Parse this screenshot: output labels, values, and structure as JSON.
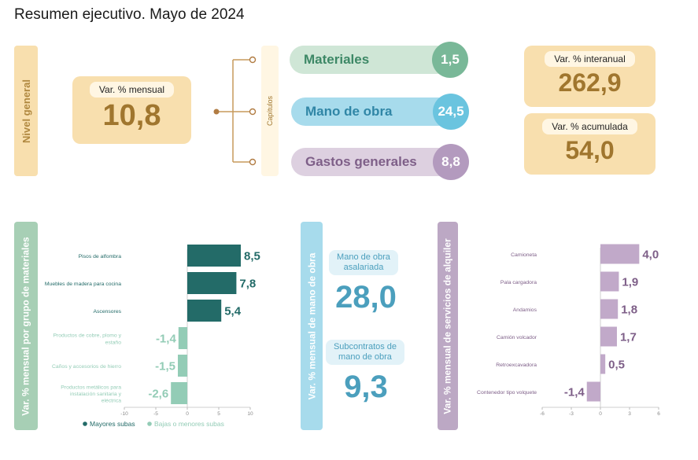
{
  "title": "Resumen ejecutivo. Mayo de 2024",
  "nivel_general": {
    "tab_label": "Nivel general",
    "mensual_label": "Var. % mensual",
    "mensual_value": "10,8",
    "capitulos_label": "Capítulos",
    "interanual_label": "Var. % interanual",
    "interanual_value": "262,9",
    "acumulada_label": "Var. % acumulada",
    "acumulada_value": "54,0",
    "capitulos": [
      {
        "label": "Materiales",
        "value": "1,5"
      },
      {
        "label": "Mano de obra",
        "value": "24,5"
      },
      {
        "label": "Gastos generales",
        "value": "8,8"
      }
    ]
  },
  "mano_obra": {
    "tab_label": "Var. % mensual de mano de obra",
    "asalariada_label": "Mano de obra asalariada",
    "asalariada_value": "28,0",
    "subcontratos_label": "Subcontratos de mano de obra",
    "subcontratos_value": "9,3"
  },
  "colors": {
    "tan": "#f8dfae",
    "tan_text": "#a0762e",
    "green_pill": "#cfe6d6",
    "green_circle": "#79b898",
    "blue_pill": "#a7dbec",
    "blue_circle": "#6ac4df",
    "purple_pill": "#ddd0e0",
    "purple_circle": "#b39abe",
    "teal_dark": "#236b68",
    "teal_light": "#93ccb6",
    "mauve": "#c1a9c9",
    "mauve_text": "#7e5f88",
    "blue_text": "#4b9fbd"
  },
  "chart_data": [
    {
      "type": "bar",
      "orientation": "horizontal",
      "title": "Var. % mensual por grupo de materiales",
      "categories": [
        "Pisos de alfombra",
        "Muebles de madera para cocina",
        "Ascensores",
        "Productos de cobre, plomo y estaño",
        "Caños y accesorios de hierro",
        "Productos metálicos para instalación sanitaria y eléctrica"
      ],
      "values": [
        8.5,
        7.8,
        5.4,
        -1.4,
        -1.5,
        -2.6
      ],
      "value_labels": [
        "8,5",
        "7,8",
        "5,4",
        "-1,4",
        "-1,5",
        "-2,6"
      ],
      "group": [
        "Mayores subas",
        "Mayores subas",
        "Mayores subas",
        "Bajas o menores subas",
        "Bajas o menores subas",
        "Bajas o menores subas"
      ],
      "xlim": [
        -10,
        10
      ],
      "ticks": [
        -10,
        -5,
        0,
        5,
        10
      ],
      "tick_labels": [
        "-10",
        "-5",
        "0",
        "5",
        "10"
      ],
      "legend": [
        {
          "name": "Mayores subas",
          "color": "#236b68"
        },
        {
          "name": "Bajas o menores subas",
          "color": "#93ccb6"
        }
      ],
      "legend_position": "bottom"
    },
    {
      "type": "bar",
      "orientation": "horizontal",
      "title": "Var. % mensual de servicios de alquiler",
      "categories": [
        "Camioneta",
        "Pala cargadora",
        "Andamios",
        "Camión volcador",
        "Retroexcavadora",
        "Contenedor tipo volquete"
      ],
      "values": [
        4.0,
        1.9,
        1.8,
        1.7,
        0.5,
        -1.4
      ],
      "value_labels": [
        "4,0",
        "1,9",
        "1,8",
        "1,7",
        "0,5",
        "-1,4"
      ],
      "xlim": [
        -6,
        6
      ],
      "ticks": [
        -6,
        -3,
        0,
        3,
        6
      ],
      "tick_labels": [
        "-6",
        "-3",
        "0",
        "3",
        "6"
      ]
    }
  ]
}
